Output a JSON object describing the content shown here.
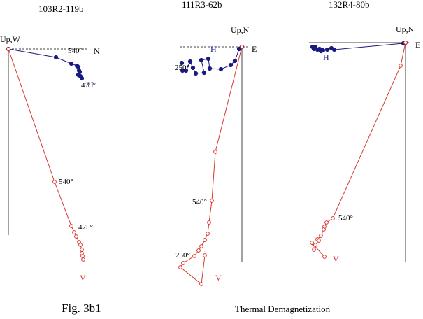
{
  "figure": {
    "label": "Fig. 3b1",
    "caption": "Thermal Demagnetization"
  },
  "colors": {
    "horizontal": "#1a1a80",
    "vertical": "#d9382e",
    "axis": "#444444",
    "text": "#000000",
    "label_blue": "#1a1a80",
    "label_red": "#d9382e"
  },
  "chart_data": [
    {
      "type": "scatter",
      "title": "103R2-119b",
      "origin_label": "Up,W",
      "axis_label": "N",
      "series": [
        {
          "name": "H",
          "x": [
            0,
            68,
            90,
            98,
            100,
            101,
            102,
            100,
            103,
            105
          ],
          "y": [
            0,
            12,
            21,
            24,
            26,
            31,
            33,
            37,
            39,
            42
          ]
        },
        {
          "name": "V",
          "x": [
            0,
            66,
            90,
            94,
            97,
            101,
            103,
            105,
            105,
            106,
            107
          ],
          "y": [
            0,
            190,
            253,
            262,
            268,
            276,
            280,
            287,
            292,
            296,
            301
          ]
        }
      ],
      "annotations": [
        {
          "text": "540°",
          "series": "H",
          "index": 1
        },
        {
          "text": "475°",
          "series": "H",
          "index": 7
        },
        {
          "text": "540°",
          "series": "V",
          "index": 1
        },
        {
          "text": "475°",
          "series": "V",
          "index": 2
        }
      ]
    },
    {
      "type": "scatter",
      "title": "111R3-62b",
      "origin_label": "Up,N",
      "axis_label": "E",
      "series": [
        {
          "name": "H",
          "x": [
            0,
            -4,
            -10,
            -16,
            -30,
            -46,
            -48,
            -58,
            -54,
            -66,
            -70,
            -74,
            -80,
            -85,
            -86
          ],
          "y": [
            0,
            3,
            20,
            26,
            32,
            31,
            17,
            19,
            37,
            38,
            30,
            21,
            34,
            34,
            23
          ]
        },
        {
          "name": "V",
          "x": [
            0,
            -38,
            -43,
            -47,
            -49,
            -53,
            -58,
            -62,
            -68,
            -84,
            -88,
            -58,
            -53
          ],
          "y": [
            0,
            150,
            220,
            251,
            267,
            276,
            285,
            291,
            299,
            309,
            315,
            339,
            298
          ]
        }
      ],
      "annotations": [
        {
          "text": "250°",
          "series": "H",
          "index": 14
        },
        {
          "text": "540°",
          "series": "V",
          "index": 2
        },
        {
          "text": "250°",
          "series": "V",
          "index": 8
        }
      ]
    },
    {
      "type": "scatter",
      "title": "132R4-80b",
      "origin_label": "Up,N",
      "axis_label": "E",
      "series": [
        {
          "name": "H",
          "x": [
            0,
            -3,
            -102,
            -106,
            -112,
            -118,
            -121,
            -123,
            -126,
            -129,
            -131,
            -133
          ],
          "y": [
            0,
            1,
            10,
            8,
            10,
            11,
            12,
            9,
            10,
            6,
            9,
            6
          ]
        },
        {
          "name": "V",
          "x": [
            0,
            -7,
            -104,
            -113,
            -116,
            -117,
            -121,
            -126,
            -124,
            -129,
            -131,
            -134,
            -116
          ],
          "y": [
            0,
            33,
            251,
            257,
            263,
            267,
            276,
            281,
            283,
            289,
            296,
            286,
            306
          ]
        }
      ],
      "annotations": [
        {
          "text": "540°",
          "series": "V",
          "index": 2
        }
      ]
    }
  ]
}
